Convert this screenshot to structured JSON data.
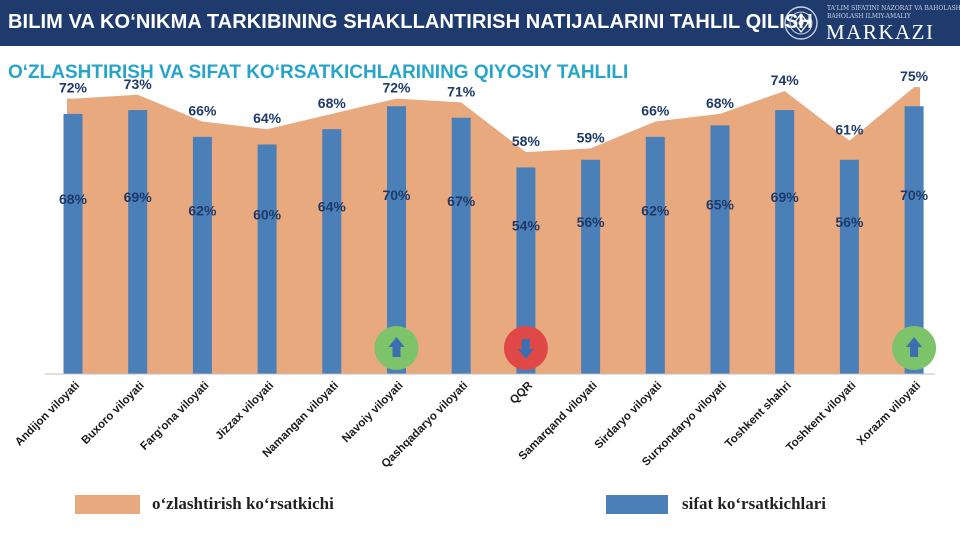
{
  "header": {
    "title": "BILIM VA KO‘NIKMA TARKIBINING SHAKLLANTIRISH NATIJALARINI TAHLIL QILISH",
    "logo_small_line1": "TA'LIM SIFATINI NAZORAT VA BAHOLASH",
    "logo_small_line2": "BAHOLASH ILMIY-AMALIY",
    "logo_big": "MARKAZI"
  },
  "subtitle": "O‘ZLASHTIRISH VA SIFAT KO‘RSATKICHLARINING QIYOSIY TAHLILI",
  "colors": {
    "header_bg": "#1f3b6e",
    "subtitle": "#26a5c9",
    "area": "#e8a97e",
    "bar": "#4a7fb8",
    "label": "#1e3a6a",
    "arrow_up_bg": "#7cc36a",
    "arrow_down_bg": "#e04848",
    "arrow_fg": "#3b6fb2"
  },
  "chart_data": {
    "type": "bar",
    "categories": [
      "Andijon viloyati",
      "Buxoro viloyati",
      "Farg‘ona viloyati",
      "Jizzax viloyati",
      "Namangan viloyati",
      "Navoiy viloyati",
      "Qashqadaryo viloyati",
      "QQR",
      "Samarqand viloyati",
      "Sirdaryo viloyati",
      "Surxondaryo viloyati",
      "Toshkent shahri",
      "Toshkent viloyati",
      "Xorazm viloyati"
    ],
    "series": [
      {
        "name": "o‘zlashtirish ko‘rsatkichi",
        "render": "area",
        "values": [
          72,
          73,
          66,
          64,
          68,
          72,
          71,
          58,
          59,
          66,
          68,
          74,
          61,
          75
        ],
        "labels": [
          "72%",
          "73%",
          "66%",
          "64%",
          "68%",
          "72%",
          "71%",
          "58%",
          "59%",
          "66%",
          "68%",
          "74%",
          "61%",
          "75%"
        ]
      },
      {
        "name": "sifat ko‘rsatkichlari",
        "render": "bar",
        "values": [
          68,
          69,
          62,
          60,
          64,
          70,
          67,
          54,
          56,
          62,
          65,
          69,
          56,
          70
        ],
        "labels": [
          "68%",
          "69%",
          "62%",
          "60%",
          "64%",
          "70%",
          "67%",
          "54%",
          "56%",
          "62%",
          "65%",
          "69%",
          "56%",
          "70%"
        ]
      }
    ],
    "title": "O‘ZLASHTIRISH VA SIFAT KO‘RSATKICHLARINING QIYOSIY TAHLILI",
    "xlabel": "",
    "ylabel": "",
    "ylim": [
      0,
      80
    ],
    "grid": false,
    "legend": "bottom",
    "annotations": [
      {
        "category": "Navoiy viloyati",
        "icon": "arrow-up-icon"
      },
      {
        "category": "QQR",
        "icon": "arrow-down-icon"
      },
      {
        "category": "Xorazm viloyati",
        "icon": "arrow-up-icon"
      }
    ]
  },
  "legend": {
    "items": [
      {
        "label": "o‘zlashtirish ko‘rsatkichi",
        "color": "#e8a97e"
      },
      {
        "label": "sifat ko‘rsatkichlari",
        "color": "#4a7fb8"
      }
    ]
  }
}
